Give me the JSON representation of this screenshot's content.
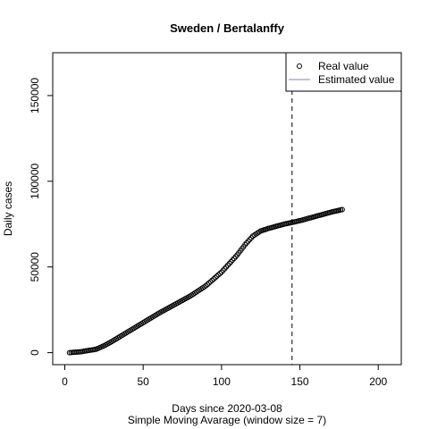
{
  "chart_data": {
    "type": "scatter",
    "title": "Sweden / Bertalanffy",
    "xlabel": "Days since 2020-03-08",
    "subtitle": "Simple Moving Avarage (window size = 7)",
    "ylabel": "Daily cases",
    "xlim": [
      -7.7,
      214.7
    ],
    "ylim": [
      -7000,
      175000
    ],
    "x_ticks": [
      0,
      50,
      100,
      150,
      200
    ],
    "x_tick_labels": [
      "0",
      "50",
      "100",
      "150",
      "200"
    ],
    "y_ticks": [
      0,
      50000,
      100000,
      150000
    ],
    "y_tick_labels": [
      "0",
      "50000",
      "100000",
      "150000"
    ],
    "vline_x": 145,
    "legend_position": "top-right",
    "legend": [
      {
        "label": "Real value",
        "marker": "circle",
        "color": "#000000"
      },
      {
        "label": "Estimated value",
        "marker": "line",
        "color": "#9370DB"
      }
    ],
    "series": [
      {
        "name": "Real value",
        "x_start": 3,
        "x_end": 177,
        "control_points": [
          [
            3,
            0
          ],
          [
            10,
            500
          ],
          [
            20,
            2000
          ],
          [
            25,
            4000
          ],
          [
            30,
            6500
          ],
          [
            40,
            12000
          ],
          [
            50,
            17500
          ],
          [
            60,
            23000
          ],
          [
            70,
            28000
          ],
          [
            80,
            33000
          ],
          [
            90,
            39000
          ],
          [
            100,
            47000
          ],
          [
            110,
            57000
          ],
          [
            115,
            63000
          ],
          [
            120,
            68000
          ],
          [
            125,
            71000
          ],
          [
            130,
            72500
          ],
          [
            140,
            75000
          ],
          [
            145,
            76000
          ],
          [
            150,
            77000
          ],
          [
            160,
            79500
          ],
          [
            170,
            82000
          ],
          [
            177,
            83500
          ]
        ]
      }
    ]
  }
}
